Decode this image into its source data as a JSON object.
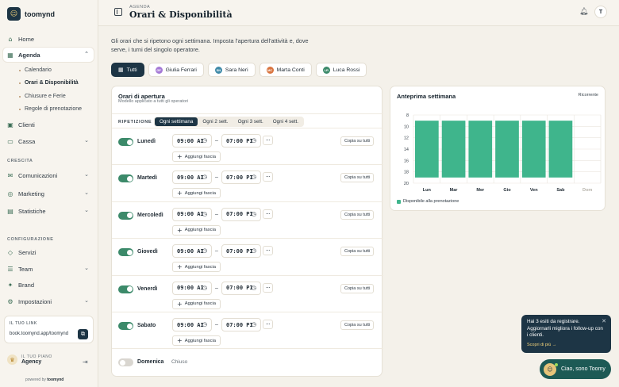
{
  "app": {
    "brand": "toomynd"
  },
  "sidebar": {
    "items": [
      {
        "label": "Home",
        "icon": "home-icon"
      },
      {
        "label": "Agenda",
        "icon": "calendar-icon",
        "active": true
      },
      {
        "label": "Clienti",
        "icon": "clients-icon"
      },
      {
        "label": "Cassa",
        "icon": "cash-icon"
      },
      {
        "label": "Comunicazioni",
        "icon": "message-icon"
      },
      {
        "label": "Marketing",
        "icon": "marketing-icon"
      },
      {
        "label": "Statistiche",
        "icon": "stats-icon"
      },
      {
        "label": "Servizi",
        "icon": "tag-icon"
      },
      {
        "label": "Team",
        "icon": "team-icon"
      },
      {
        "label": "Brand",
        "icon": "brand-icon"
      },
      {
        "label": "Impostazioni",
        "icon": "gear-icon"
      }
    ],
    "agenda_sub": [
      "Calendario",
      "Orari & Disponibilità",
      "Chiusure e Ferie",
      "Regole di prenotazione"
    ],
    "sections": {
      "growth": "CRESCITA",
      "config": "CONFIGURAZIONE"
    },
    "link": {
      "label": "IL TUO LINK",
      "url": "book.toomynd.app/toomynd"
    },
    "plan": {
      "label": "IL TUO PIANO",
      "value": "Agency"
    },
    "powered_prefix": "powered by",
    "powered_brand": "toomynd"
  },
  "header": {
    "subtitle": "AGENDA",
    "title": "Orari & Disponibilità",
    "avatar": "T"
  },
  "intro": "Gli orari che si ripetono ogni settimana. Imposta l'apertura dell'attività e, dove serve, i turni del singolo operatore.",
  "tabs": [
    {
      "label": "Tutti",
      "active": true
    },
    {
      "label": "Giulia Ferrari",
      "initials": "GF",
      "color": "#a57ad6"
    },
    {
      "label": "Sara Neri",
      "initials": "SN",
      "color": "#3f8aa8"
    },
    {
      "label": "Marta Conti",
      "initials": "MC",
      "color": "#d9743f"
    },
    {
      "label": "Luca Rossi",
      "initials": "LR",
      "color": "#3c8a6a"
    }
  ],
  "hours": {
    "title": "Orari di apertura",
    "subtitle": "Modello applicato a tutti gli operatori",
    "repeat_label": "RIPETIZIONE",
    "repeat_options": [
      "Ogni settimana",
      "Ogni 2 sett.",
      "Ogni 3 sett.",
      "Ogni 4 sett."
    ],
    "copy_label": "Copia su tutti",
    "add_label": "Aggiungi fascia",
    "closed_label": "Chiuso",
    "days": [
      {
        "name": "Lunedì",
        "open": true,
        "from": "09:00 AI",
        "to": "07:00 PI"
      },
      {
        "name": "Martedì",
        "open": true,
        "from": "09:00 AI",
        "to": "07:00 PI"
      },
      {
        "name": "Mercoledì",
        "open": true,
        "from": "09:00 AI",
        "to": "07:00 PI"
      },
      {
        "name": "Giovedì",
        "open": true,
        "from": "09:00 AI",
        "to": "07:00 PI"
      },
      {
        "name": "Venerdì",
        "open": true,
        "from": "09:00 AI",
        "to": "07:00 PI"
      },
      {
        "name": "Sabato",
        "open": true,
        "from": "09:00 AI",
        "to": "07:00 PI"
      },
      {
        "name": "Domenica",
        "open": false
      }
    ]
  },
  "preview": {
    "title": "Anteprima settimana",
    "recent": "Ricorrente",
    "legend": "Disponibile alla prenotazione"
  },
  "chart_data": {
    "type": "bar",
    "categories": [
      "Lun",
      "Mar",
      "Mer",
      "Gio",
      "Ven",
      "Sab",
      "Dom"
    ],
    "y_ticks": [
      8,
      10,
      12,
      14,
      16,
      18,
      20
    ],
    "ylim": [
      8,
      20
    ],
    "y_reversed": true,
    "series": [
      {
        "name": "Disponibile alla prenotazione",
        "ranges": [
          [
            9,
            19
          ],
          [
            9,
            19
          ],
          [
            9,
            19
          ],
          [
            9,
            19
          ],
          [
            9,
            19
          ],
          [
            9,
            19
          ],
          null
        ]
      }
    ],
    "bar_color": "#3fb58c",
    "grid": true
  },
  "notification": {
    "message": "Hai 3 esiti da registrare. Aggiornarli migliora i follow-up con i clienti.",
    "cta": "Scopri di più →"
  },
  "assistant": {
    "label": "Ciao, sono Toomy"
  }
}
